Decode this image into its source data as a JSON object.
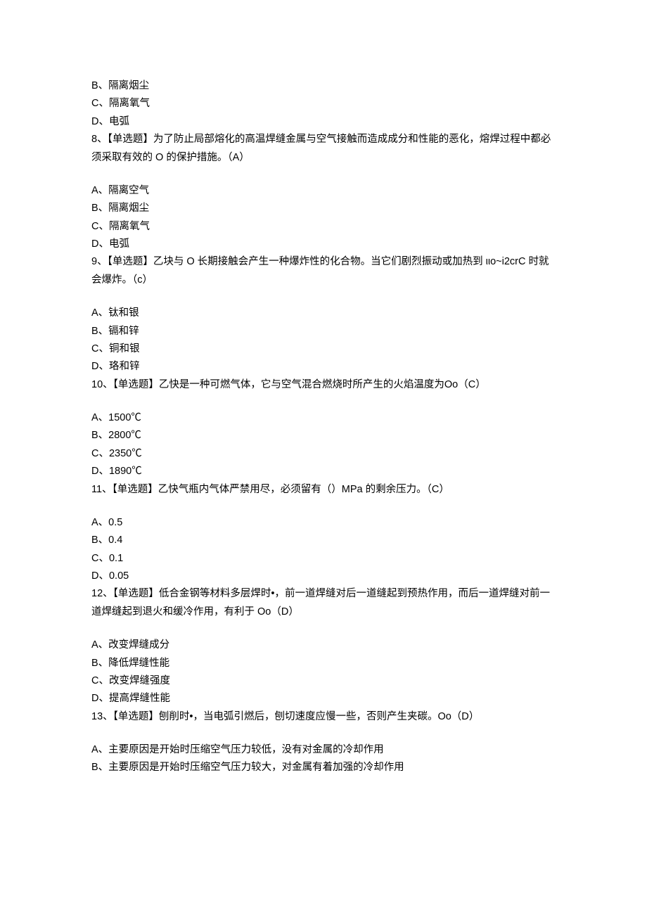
{
  "page": {
    "background_color": "#ffffff",
    "text_color": "#000000",
    "font_size_pt": 11,
    "line_height": 1.75,
    "font_family": "SimSun/Microsoft YaHei"
  },
  "lines": [
    "B、隔离烟尘",
    "C、隔离氧气",
    "D、电弧",
    "8、【单选题】为了防止局部熔化的高温焊缝金属与空气接触而造成成分和性能的恶化，熔焊过程中都必须采取有效的 O 的保护措施。（A）",
    "",
    "A、隔离空气",
    "B、隔离烟尘",
    "C、隔离氧气",
    "D、电弧",
    "9、【单选题】乙块与 O 长期接触会产生一种爆炸性的化合物。当它们剧烈振动或加热到 ιιo~i2crC 时就会爆炸。（c）",
    "",
    "A、钛和银",
    "B、镉和锌",
    "C、铜和银",
    "D、珞和锌",
    "10、【单选题】乙快是一种可燃气体，它与空气混合燃烧时所产生的火焰温度为Oo（C）",
    "",
    "A、1500℃",
    "B、2800℃",
    "C、2350℃",
    "D、1890℃",
    "11、【单选题】乙快气瓶内气体严禁用尽，必须留有（）MPa 的剩余压力。（C）",
    "",
    "A、0.5",
    "B、0.4",
    "C、0.1",
    "D、0.05",
    "12、【单选题】低合金钢等材料多层焊时•，前一道焊缝对后一道缝起到预热作用，而后一道焊缝对前一道焊缝起到退火和缓冷作用，有利于 Oo（D）",
    "",
    "A、改变焊缝成分",
    "B、降低焊缝性能",
    "C、改变焊缝强度",
    "D、提高焊缝性能",
    "13、【单选题】刨削时•，当电弧引燃后，刨切速度应慢一些，否则产生夹碳。Oo（D）",
    "",
    "A、主要原因是开始时压缩空气压力较低，没有对金属的冷却作用",
    "B、主要原因是开始时压缩空气压力较大，对金属有着加强的冷却作用"
  ]
}
